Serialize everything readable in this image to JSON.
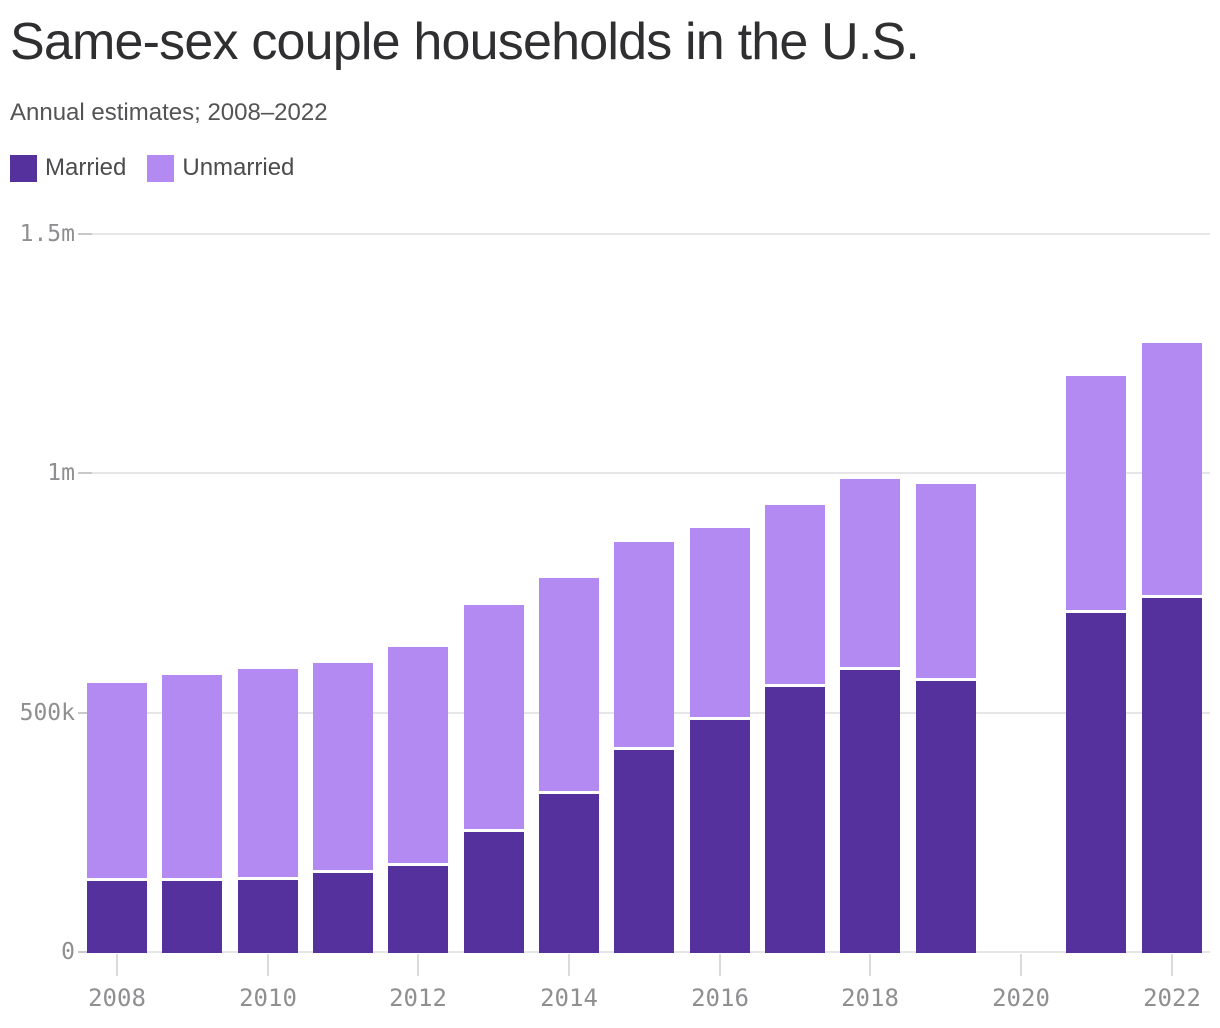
{
  "header": {
    "title": "Same-sex couple households in the U.S.",
    "subtitle": "Annual estimates; 2008–2022"
  },
  "legend": {
    "items": [
      {
        "label": "Married",
        "color": "#54319C"
      },
      {
        "label": "Unmarried",
        "color": "#B28AF1"
      }
    ]
  },
  "colors": {
    "background": "#ffffff",
    "title": "#2f2f31",
    "subtitle": "#545456",
    "axis_label": "#8f8f92",
    "gridline": "#e6e6e8",
    "axis_dash": "#c9c9cb",
    "x_tick": "#dbdbdd",
    "segment_divider": "#ffffff"
  },
  "chart_data": {
    "type": "bar",
    "stacked": true,
    "title": "Same-sex couple households in the U.S.",
    "subtitle": "Annual estimates; 2008–2022",
    "units": "households (values in thousands)",
    "categories": [
      2008,
      2009,
      2010,
      2011,
      2012,
      2013,
      2014,
      2015,
      2016,
      2017,
      2018,
      2019,
      2020,
      2021,
      2022
    ],
    "series": [
      {
        "name": "Married",
        "color": "#54319C",
        "values": [
          150,
          151,
          152,
          168,
          182,
          252,
          333,
          425,
          487,
          555,
          592,
          568,
          null,
          710,
          741
        ]
      },
      {
        "name": "Unmarried",
        "color": "#B28AF1",
        "values": [
          415,
          430,
          442,
          437,
          457,
          474,
          450,
          433,
          400,
          380,
          398,
          412,
          null,
          495,
          533
        ]
      }
    ],
    "missing_categories": [
      2020
    ],
    "ylim": [
      0,
      1500
    ],
    "y_ticks": [
      {
        "value": 0,
        "label": "0"
      },
      {
        "value": 500,
        "label": "500k"
      },
      {
        "value": 1000,
        "label": "1m"
      },
      {
        "value": 1500,
        "label": "1.5m"
      }
    ],
    "x_ticks": [
      {
        "value": 2008,
        "label": "2008"
      },
      {
        "value": 2010,
        "label": "2010"
      },
      {
        "value": 2012,
        "label": "2012"
      },
      {
        "value": 2014,
        "label": "2014"
      },
      {
        "value": 2016,
        "label": "2016"
      },
      {
        "value": 2018,
        "label": "2018"
      },
      {
        "value": 2020,
        "label": "2020"
      },
      {
        "value": 2022,
        "label": "2022"
      }
    ],
    "grid": "horizontal",
    "legend_position": "top-left"
  }
}
